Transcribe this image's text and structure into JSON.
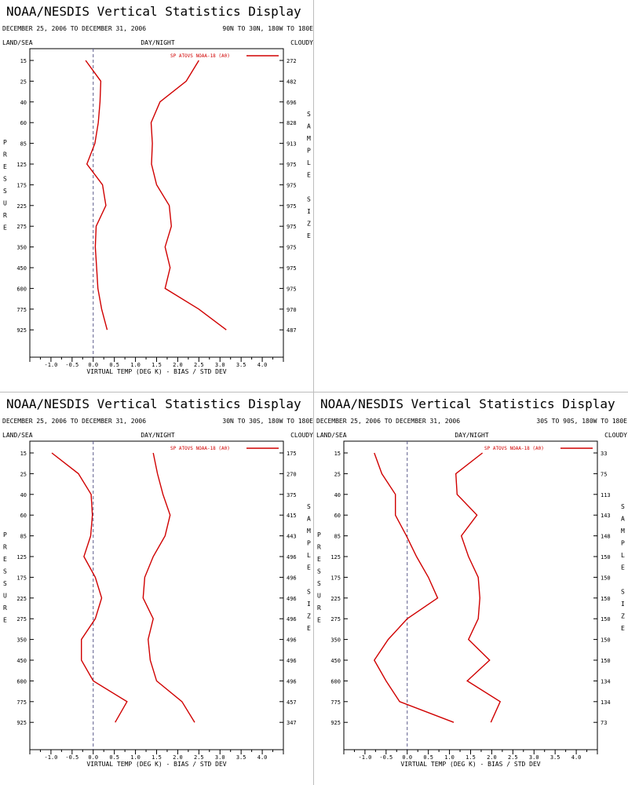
{
  "title": "NOAA/NESDIS Vertical Statistics Display",
  "labels": {
    "land_sea": "LAND/SEA",
    "day_night": "DAY/NIGHT",
    "cloudy": "CLOUDY",
    "pressure_vertical": "PRESSURE",
    "sample_size_vertical": "SAMPLE SIZE",
    "xlabel": "VIRTUAL TEMP (DEG K) - BIAS / STD DEV",
    "legend": "SP ATOVS NOAA-18 (A0)"
  },
  "colors": {
    "series": "#d00000",
    "zero_line": "#5a5a8a",
    "divider": "#bdbdbd"
  },
  "chart_data": [
    {
      "type": "line",
      "date_range": "DECEMBER 25, 2006 TO DECEMBER 31, 2006",
      "region": "90N TO 30N, 180W TO 180E",
      "pressure_levels": [
        "15",
        "25",
        "40",
        "60",
        "85",
        "125",
        "175",
        "225",
        "275",
        "350",
        "450",
        "600",
        "775",
        "925"
      ],
      "xlim": [
        -1.5,
        4.5
      ],
      "xticks": [
        "-1.0",
        "-0.5",
        "0.0",
        "0.5",
        "1.0",
        "1.5",
        "2.0",
        "2.5",
        "3.0",
        "3.5",
        "4.0"
      ],
      "sample_size": [
        "272",
        "482",
        "696",
        "828",
        "913",
        "975",
        "975",
        "975",
        "975",
        "975",
        "975",
        "975",
        "970",
        "487"
      ],
      "series": [
        {
          "name": "BIAS",
          "values": [
            -0.18,
            0.18,
            0.16,
            0.12,
            0.04,
            -0.15,
            0.22,
            0.3,
            0.07,
            0.05,
            0.08,
            0.11,
            0.2,
            0.33
          ]
        },
        {
          "name": "STD DEV",
          "values": [
            2.5,
            2.2,
            1.58,
            1.37,
            1.4,
            1.38,
            1.5,
            1.8,
            1.85,
            1.7,
            1.82,
            1.7,
            2.5,
            3.15
          ]
        }
      ]
    },
    {
      "type": "line",
      "date_range": "DECEMBER 25, 2006 TO DECEMBER 31, 2006",
      "region": "30N TO 30S, 180W TO 180E",
      "pressure_levels": [
        "15",
        "25",
        "40",
        "60",
        "85",
        "125",
        "175",
        "225",
        "275",
        "350",
        "450",
        "600",
        "775",
        "925"
      ],
      "xlim": [
        -1.5,
        4.5
      ],
      "xticks": [
        "-1.0",
        "-0.5",
        "0.0",
        "0.5",
        "1.0",
        "1.5",
        "2.0",
        "2.5",
        "3.0",
        "3.5",
        "4.0"
      ],
      "sample_size": [
        "175",
        "270",
        "375",
        "415",
        "443",
        "496",
        "496",
        "496",
        "496",
        "496",
        "496",
        "496",
        "457",
        "347"
      ],
      "series": [
        {
          "name": "BIAS",
          "values": [
            -0.98,
            -0.35,
            -0.05,
            -0.02,
            -0.06,
            -0.22,
            0.05,
            0.2,
            0.05,
            -0.28,
            -0.28,
            0.0,
            0.8,
            0.52
          ]
        },
        {
          "name": "STD DEV",
          "values": [
            1.42,
            1.52,
            1.65,
            1.82,
            1.7,
            1.42,
            1.22,
            1.18,
            1.42,
            1.3,
            1.35,
            1.5,
            2.1,
            2.4
          ]
        }
      ]
    },
    {
      "type": "line",
      "date_range": "DECEMBER 25, 2006 TO DECEMBER 31, 2006",
      "region": "30S TO 90S, 180W TO 180E",
      "pressure_levels": [
        "15",
        "25",
        "40",
        "60",
        "85",
        "125",
        "175",
        "225",
        "275",
        "350",
        "450",
        "600",
        "775",
        "925"
      ],
      "xlim": [
        -1.5,
        4.5
      ],
      "xticks": [
        "-1.0",
        "-0.5",
        "0.0",
        "0.5",
        "1.0",
        "1.5",
        "2.0",
        "2.5",
        "3.0",
        "3.5",
        "4.0"
      ],
      "sample_size": [
        "33",
        "75",
        "113",
        "143",
        "148",
        "150",
        "150",
        "150",
        "150",
        "150",
        "150",
        "134",
        "134",
        "73"
      ],
      "series": [
        {
          "name": "BIAS",
          "values": [
            -0.78,
            -0.6,
            -0.28,
            -0.28,
            -0.02,
            0.22,
            0.5,
            0.72,
            0.0,
            -0.45,
            -0.78,
            -0.5,
            -0.18,
            1.1
          ]
        },
        {
          "name": "STD DEV",
          "values": [
            1.78,
            1.15,
            1.18,
            1.65,
            1.28,
            1.45,
            1.68,
            1.72,
            1.68,
            1.45,
            1.95,
            1.42,
            2.2,
            1.98
          ]
        }
      ]
    }
  ]
}
